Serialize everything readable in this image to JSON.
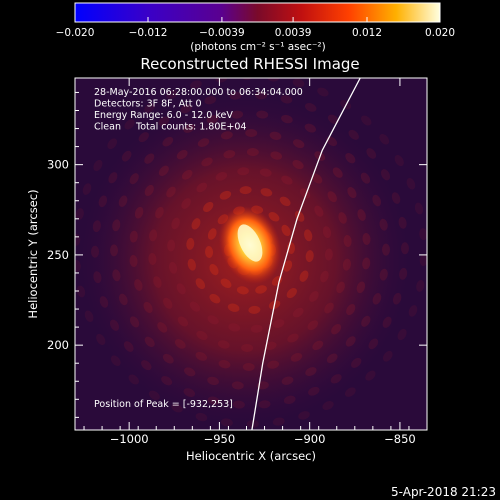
{
  "chart_data": {
    "type": "heatmap",
    "title": "Reconstructed RHESSI Image",
    "xlabel": "Heliocentric X (arcsec)",
    "ylabel": "Heliocentric Y (arcsec)",
    "xlim": [
      -1030,
      -835
    ],
    "ylim": [
      153,
      348
    ],
    "x_ticks": [
      -1000,
      -950,
      -900,
      -850
    ],
    "y_ticks": [
      200,
      250,
      300
    ],
    "x_tick_labels": [
      "−1000",
      "−950",
      "−900",
      "−850"
    ],
    "y_tick_labels": [
      "200",
      "250",
      "300"
    ],
    "colorbar": {
      "range": [
        -0.02,
        0.02
      ],
      "ticks": [
        -0.02,
        -0.012,
        -0.0039,
        0.0039,
        0.012,
        0.02
      ],
      "tick_labels": [
        "−0.020",
        "−0.012",
        "−0.0039",
        "0.0039",
        "0.012",
        "0.020"
      ],
      "unit_label": "(photons cm⁻² s⁻¹ asec⁻²)"
    },
    "peak": {
      "x": -932,
      "y": 253
    },
    "limb_curve": [
      [
        -932,
        153
      ],
      [
        -926,
        190
      ],
      [
        -917,
        235
      ],
      [
        -907,
        270
      ],
      [
        -893,
        308
      ],
      [
        -872,
        348
      ]
    ],
    "annotations": [
      "28-May-2016 06:28:00.000 to 06:34:04.000",
      "Detectors: 3F 8F, Att 0",
      "Energy Range: 6.0 - 12.0 keV",
      "Clean     Total counts: 1.80E+04"
    ],
    "peak_label": "Position of Peak = [-932,253]",
    "footer": "5-Apr-2018 21:23"
  }
}
